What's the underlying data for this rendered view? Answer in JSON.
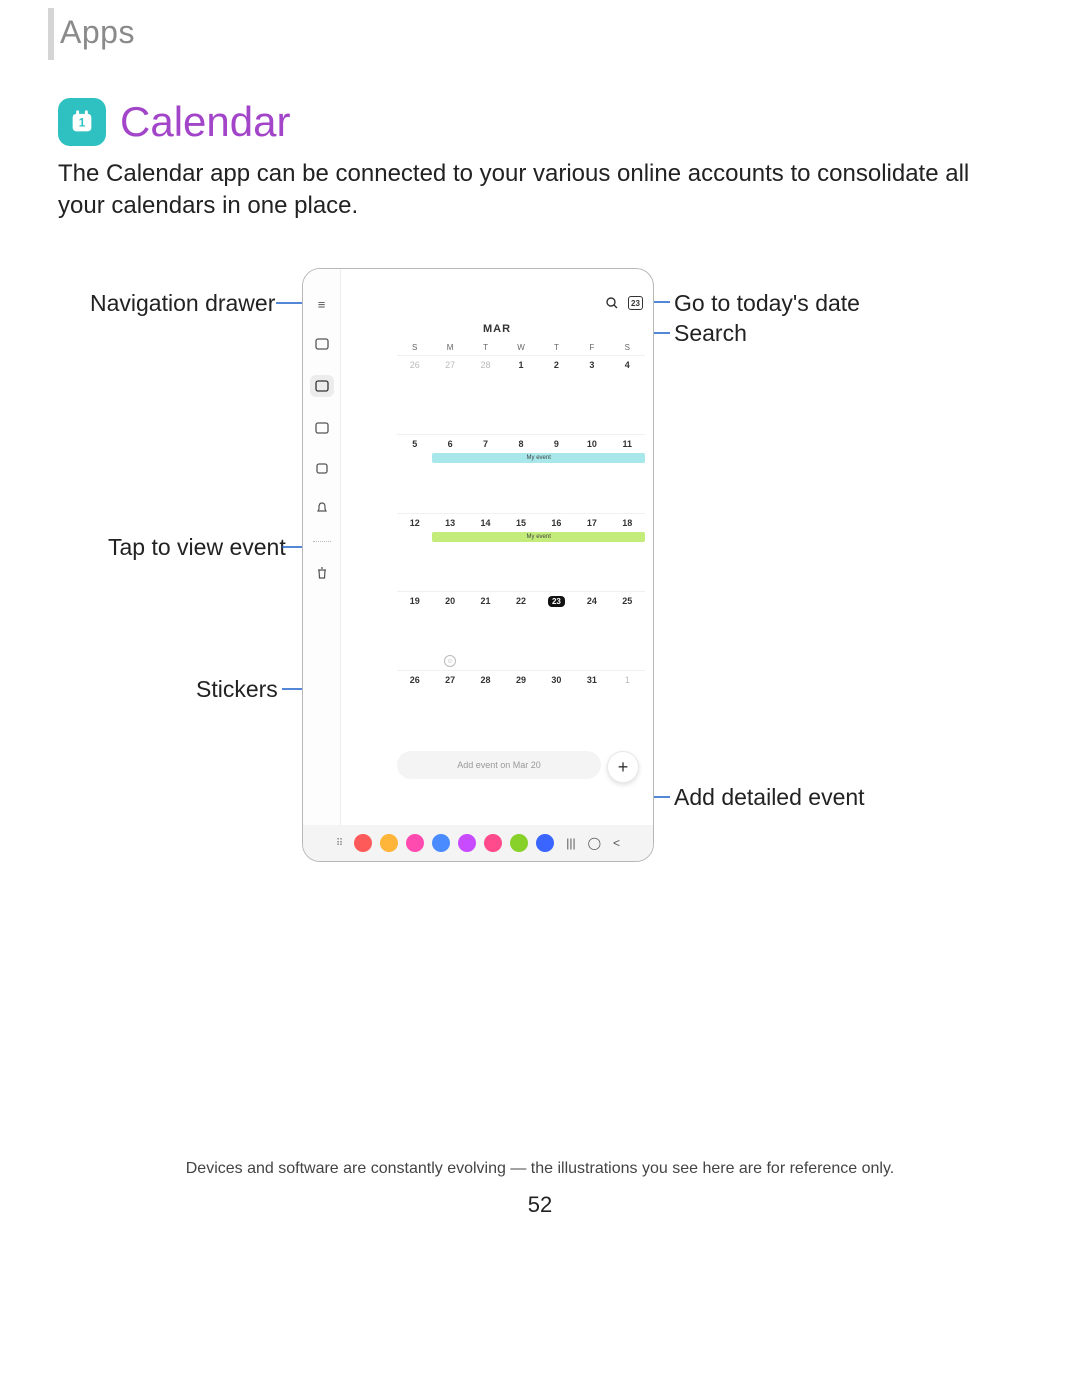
{
  "page_header": "Apps",
  "title": "Calendar",
  "description": "The Calendar app can be connected to your various online accounts to consolidate all your calendars in one place.",
  "callouts": {
    "navigation_drawer": "Navigation drawer",
    "tap_event": "Tap to view event",
    "stickers": "Stickers",
    "today": "Go to today's date",
    "search": "Search",
    "add_event": "Add detailed event"
  },
  "device": {
    "month": "MAR",
    "dow": [
      "S",
      "M",
      "T",
      "W",
      "T",
      "F",
      "S"
    ],
    "today_badge": "23",
    "weeks": [
      {
        "days": [
          "26",
          "27",
          "28",
          "1",
          "2",
          "3",
          "4"
        ],
        "dim": [
          0,
          1,
          2
        ]
      },
      {
        "days": [
          "5",
          "6",
          "7",
          "8",
          "9",
          "10",
          "11"
        ],
        "event": {
          "label": "My event",
          "color": "#a8e8ea",
          "start": 1,
          "end": 6
        }
      },
      {
        "days": [
          "12",
          "13",
          "14",
          "15",
          "16",
          "17",
          "18"
        ],
        "event": {
          "label": "My event",
          "color": "#c3ec7a",
          "start": 1,
          "end": 6
        }
      },
      {
        "days": [
          "19",
          "20",
          "21",
          "22",
          "23",
          "24",
          "25"
        ],
        "today_col": 4,
        "sticker_col": 1
      },
      {
        "days": [
          "26",
          "27",
          "28",
          "29",
          "30",
          "31",
          "1"
        ],
        "dim": [
          6
        ]
      }
    ],
    "quick_add": "Add event on Mar 20",
    "bottombar_colors": [
      "#ff5a5a",
      "#ffb43a",
      "#ff4bb0",
      "#4a8cff",
      "#c84bff",
      "#ff4b8c",
      "#88d02a",
      "#3a66ff"
    ]
  },
  "footer": "Devices and software are constantly evolving — the illustrations you see here are for reference only.",
  "page_number": "52"
}
